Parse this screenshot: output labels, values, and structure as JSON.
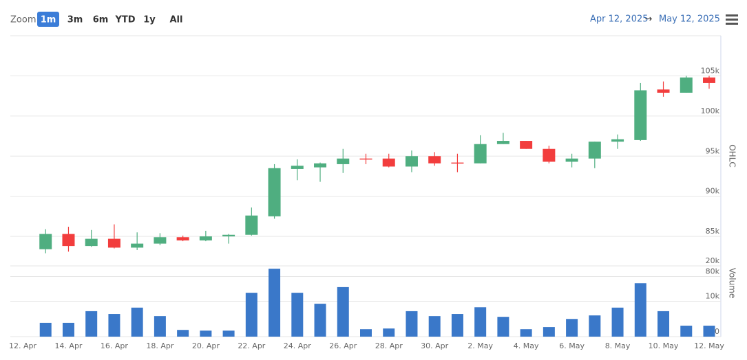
{
  "toolbar": {
    "zoom_label": "Zoom",
    "buttons": [
      "1m",
      "3m",
      "6m",
      "YTD",
      "1y",
      "All"
    ],
    "selected": 0
  },
  "date_range": {
    "from": "Apr 12, 2025",
    "arrow": "→",
    "to": "May 12, 2025"
  },
  "chart_data": [
    {
      "type": "candlestick",
      "y_label": "OHLC",
      "categories": [
        "12. Apr",
        null,
        "14. Apr",
        null,
        "16. Apr",
        null,
        "18. Apr",
        null,
        "20. Apr",
        null,
        "22. Apr",
        null,
        "24. Apr",
        null,
        "26. Apr",
        null,
        "28. Apr",
        null,
        "30. Apr",
        null,
        "2. May",
        null,
        "4. May",
        null,
        "6. May",
        null,
        "8. May",
        null,
        "10. May",
        null,
        "12. May"
      ],
      "open": [
        null,
        83400,
        85300,
        83800,
        84700,
        83600,
        84100,
        84900,
        84500,
        85000,
        85200,
        87500,
        93400,
        93600,
        94000,
        94700,
        94700,
        93700,
        95000,
        94200,
        94100,
        96500,
        96900,
        95900,
        94300,
        94700,
        96800,
        97000,
        103300,
        102900,
        104800
      ],
      "high": [
        null,
        85900,
        86200,
        85800,
        86500,
        85500,
        85400,
        85100,
        85700,
        85300,
        88600,
        94000,
        94600,
        94200,
        95900,
        95300,
        95300,
        95700,
        95500,
        95300,
        97600,
        97900,
        96900,
        96300,
        95300,
        96800,
        97700,
        104100,
        104300,
        105000,
        105000
      ],
      "low": [
        null,
        82900,
        83100,
        83700,
        83500,
        83300,
        83900,
        84400,
        84400,
        84100,
        85100,
        87200,
        92000,
        91800,
        92900,
        94000,
        93600,
        93000,
        93800,
        93000,
        94100,
        96500,
        95900,
        94100,
        93600,
        93500,
        95900,
        96900,
        102400,
        102900,
        103400
      ],
      "close": [
        null,
        85300,
        83800,
        84700,
        83600,
        84100,
        84900,
        84500,
        85000,
        85200,
        87600,
        93500,
        93800,
        94100,
        94700,
        94600,
        93700,
        95000,
        94100,
        94100,
        96500,
        96900,
        95900,
        94300,
        94700,
        96800,
        97100,
        103200,
        102900,
        104800,
        104100
      ],
      "up_color": "#4fae80",
      "down_color": "#f23d3d",
      "ylim": [
        80000,
        110000
      ],
      "yticks": [
        {
          "value": 80000,
          "label": "80k"
        },
        {
          "value": 85000,
          "label": "85k"
        },
        {
          "value": 90000,
          "label": "90k"
        },
        {
          "value": 95000,
          "label": "95k"
        },
        {
          "value": 100000,
          "label": "100k"
        },
        {
          "value": 105000,
          "label": "105k"
        }
      ],
      "grid": true
    },
    {
      "type": "bar",
      "y_label": "Volume",
      "color": "#3a78c9",
      "values": [
        null,
        3900,
        3900,
        7200,
        6400,
        8200,
        5800,
        1900,
        1700,
        1700,
        12400,
        19200,
        12400,
        9300,
        14000,
        2100,
        2300,
        7200,
        5800,
        6400,
        8300,
        5600,
        2100,
        2700,
        5000,
        6000,
        8200,
        15100,
        7200,
        3100,
        3100
      ],
      "ylim": [
        0,
        20000
      ],
      "yticks": [
        0,
        {
          "value": 10000,
          "label": "10k"
        },
        {
          "value": 20000,
          "label": "20k"
        }
      ],
      "grid": true
    }
  ]
}
